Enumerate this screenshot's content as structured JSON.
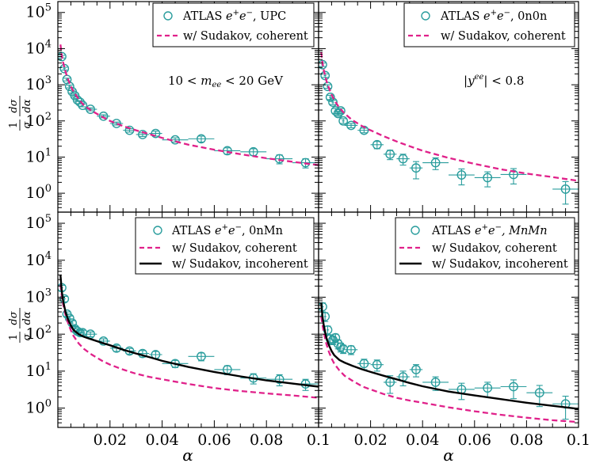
{
  "colors": {
    "data": "#2a9d9d",
    "coherent": "#e0218a",
    "incoherent": "#000000",
    "frame": "#000000"
  },
  "figure": {
    "xlabel": "α",
    "ylabel": "1/σ dσ/dα",
    "ylabel_num": "1",
    "ylabel_den": "σ",
    "ylabel_dnum": "dσ",
    "ylabel_dden": "dα"
  },
  "chart_data": [
    {
      "type": "scatter",
      "panel": "top-left",
      "xlim": [
        0,
        0.1
      ],
      "ylim": [
        0.3,
        200000
      ],
      "yscale": "log",
      "ylabel": "1/σ dσ/dα",
      "xlabel": "",
      "annotation": "10 < mee < 20 GeV",
      "legend": {
        "placement": "top-right",
        "entries": [
          "ATLAS e+e−, UPC",
          "w/ Sudakov, coherent"
        ]
      },
      "series": [
        {
          "name": "ATLAS e+e−, UPC",
          "kind": "data",
          "x": [
            0.0015,
            0.0025,
            0.0035,
            0.0045,
            0.0055,
            0.0065,
            0.0075,
            0.0085,
            0.0095,
            0.0125,
            0.0175,
            0.0225,
            0.0275,
            0.0325,
            0.0375,
            0.045,
            0.055,
            0.065,
            0.075,
            0.085,
            0.095
          ],
          "y": [
            6000,
            2800,
            1400,
            900,
            650,
            500,
            380,
            330,
            270,
            210,
            135,
            85,
            55,
            42,
            45,
            30,
            32,
            15,
            14,
            9,
            7
          ],
          "xerr": [
            0.0005,
            0.0005,
            0.0005,
            0.0005,
            0.0005,
            0.0005,
            0.0005,
            0.0005,
            0.0005,
            0.0025,
            0.0025,
            0.0025,
            0.0025,
            0.0025,
            0.0025,
            0.005,
            0.005,
            0.005,
            0.005,
            0.005,
            0.005
          ],
          "yerr": [
            500,
            250,
            120,
            80,
            60,
            45,
            35,
            30,
            25,
            20,
            13,
            8,
            6,
            5,
            7,
            4,
            6,
            3,
            3,
            2.5,
            2
          ]
        },
        {
          "name": "w/ Sudakov, coherent",
          "kind": "coherent",
          "x": [
            0.001,
            0.0015,
            0.002,
            0.003,
            0.004,
            0.005,
            0.006,
            0.008,
            0.01,
            0.013,
            0.017,
            0.02,
            0.025,
            0.03,
            0.035,
            0.04,
            0.05,
            0.06,
            0.07,
            0.08,
            0.09,
            0.1
          ],
          "y": [
            13000,
            6500,
            4200,
            2200,
            1350,
            900,
            650,
            400,
            270,
            190,
            130,
            100,
            72,
            55,
            43,
            34,
            22,
            16,
            12,
            9.3,
            7.4,
            6
          ]
        }
      ]
    },
    {
      "type": "scatter",
      "panel": "top-right",
      "xlim": [
        0,
        0.1
      ],
      "ylim": [
        0.3,
        200000
      ],
      "yscale": "log",
      "ylabel": "",
      "xlabel": "",
      "annotation": "|yee| < 0.8",
      "legend": {
        "placement": "top-right",
        "entries": [
          "ATLAS e+e−, 0n0n",
          "w/ Sudakov, coherent"
        ]
      },
      "series": [
        {
          "name": "ATLAS e+e−, 0n0n",
          "kind": "data",
          "x": [
            0.0015,
            0.0025,
            0.0035,
            0.0045,
            0.0055,
            0.0065,
            0.0075,
            0.0085,
            0.0095,
            0.0125,
            0.0175,
            0.0225,
            0.0275,
            0.0325,
            0.0375,
            0.045,
            0.055,
            0.065,
            0.075,
            0.095
          ],
          "y": [
            3600,
            1800,
            900,
            450,
            330,
            190,
            160,
            190,
            100,
            75,
            55,
            22,
            12,
            9,
            5,
            7,
            3.2,
            2.7,
            3.3,
            1.3
          ],
          "xerr": [
            0.0005,
            0.0005,
            0.0005,
            0.0005,
            0.0005,
            0.0005,
            0.0005,
            0.0005,
            0.0005,
            0.0025,
            0.0025,
            0.0025,
            0.0025,
            0.0025,
            0.0025,
            0.005,
            0.005,
            0.005,
            0.005,
            0.005
          ],
          "yerr": [
            400,
            200,
            100,
            60,
            45,
            30,
            25,
            30,
            15,
            10,
            8,
            5,
            3.5,
            3,
            2.5,
            2.5,
            1.5,
            1.2,
            1.5,
            0.8
          ]
        },
        {
          "name": "w/ Sudakov, coherent",
          "kind": "coherent",
          "x": [
            0.001,
            0.0015,
            0.002,
            0.003,
            0.004,
            0.005,
            0.006,
            0.008,
            0.01,
            0.013,
            0.017,
            0.02,
            0.025,
            0.03,
            0.035,
            0.04,
            0.05,
            0.06,
            0.07,
            0.08,
            0.09,
            0.1
          ],
          "y": [
            8000,
            4000,
            2500,
            1300,
            800,
            530,
            380,
            230,
            160,
            105,
            70,
            55,
            38,
            27,
            20,
            15,
            9.5,
            6.5,
            4.6,
            3.5,
            2.8,
            2.2
          ]
        }
      ]
    },
    {
      "type": "scatter",
      "panel": "bottom-left",
      "xlim": [
        0,
        0.1
      ],
      "ylim": [
        0.3,
        200000
      ],
      "yscale": "log",
      "ylabel": "1/σ dσ/dα",
      "xlabel": "α",
      "annotation": "",
      "legend": {
        "placement": "top-right",
        "entries": [
          "ATLAS e+e−, 0nMn",
          "w/ Sudakov, coherent",
          "w/ Sudakov, incoherent"
        ]
      },
      "series": [
        {
          "name": "ATLAS e+e−, 0nMn",
          "kind": "data",
          "x": [
            0.0015,
            0.0025,
            0.0035,
            0.0045,
            0.0055,
            0.0065,
            0.0075,
            0.0085,
            0.0095,
            0.0125,
            0.0175,
            0.0225,
            0.0275,
            0.0325,
            0.0375,
            0.045,
            0.055,
            0.065,
            0.075,
            0.085,
            0.095
          ],
          "y": [
            1800,
            900,
            350,
            270,
            200,
            140,
            120,
            110,
            110,
            100,
            65,
            42,
            35,
            30,
            28,
            16,
            25,
            11,
            6.5,
            6,
            4.5
          ],
          "xerr": [
            0.0005,
            0.0005,
            0.0005,
            0.0005,
            0.0005,
            0.0005,
            0.0005,
            0.0005,
            0.0005,
            0.0025,
            0.0025,
            0.0025,
            0.0025,
            0.0025,
            0.0025,
            0.005,
            0.005,
            0.005,
            0.005,
            0.005,
            0.005
          ],
          "yerr": [
            300,
            150,
            50,
            40,
            30,
            22,
            20,
            18,
            18,
            15,
            10,
            8,
            6,
            6,
            6,
            3.5,
            6,
            3,
            2,
            2,
            1.5
          ]
        },
        {
          "name": "w/ Sudakov, coherent",
          "kind": "coherent",
          "x": [
            0.001,
            0.0015,
            0.002,
            0.003,
            0.004,
            0.005,
            0.006,
            0.008,
            0.01,
            0.013,
            0.017,
            0.02,
            0.025,
            0.03,
            0.035,
            0.04,
            0.05,
            0.06,
            0.07,
            0.08,
            0.09,
            0.1
          ],
          "y": [
            2200,
            1100,
            650,
            320,
            190,
            125,
            90,
            56,
            40,
            28,
            19,
            15,
            11,
            8.5,
            7,
            6,
            4.5,
            3.5,
            2.9,
            2.5,
            2.2,
            1.9
          ]
        },
        {
          "name": "w/ Sudakov, incoherent",
          "kind": "incoherent",
          "x": [
            0.001,
            0.0015,
            0.002,
            0.003,
            0.004,
            0.005,
            0.006,
            0.008,
            0.01,
            0.013,
            0.017,
            0.02,
            0.025,
            0.03,
            0.035,
            0.04,
            0.05,
            0.06,
            0.07,
            0.08,
            0.09,
            0.1
          ],
          "y": [
            4000,
            1500,
            800,
            380,
            240,
            170,
            130,
            100,
            85,
            72,
            58,
            50,
            38,
            30,
            24,
            19,
            13,
            9.5,
            7.2,
            5.6,
            4.6,
            3.8
          ]
        }
      ]
    },
    {
      "type": "scatter",
      "panel": "bottom-right",
      "xlim": [
        0,
        0.1
      ],
      "ylim": [
        0.3,
        200000
      ],
      "yscale": "log",
      "ylabel": "",
      "xlabel": "α",
      "annotation": "",
      "legend": {
        "placement": "top-right",
        "entries": [
          "ATLAS e+e−, MnMn",
          "w/ Sudakov, coherent",
          "w/ Sudakov, incoherent"
        ]
      },
      "series": [
        {
          "name": "ATLAS e+e−, MnMn",
          "kind": "data",
          "x": [
            0.0015,
            0.0025,
            0.0035,
            0.0045,
            0.0055,
            0.0065,
            0.0075,
            0.0085,
            0.0095,
            0.0125,
            0.0175,
            0.0225,
            0.0275,
            0.0325,
            0.0375,
            0.045,
            0.055,
            0.065,
            0.075,
            0.085,
            0.095
          ],
          "y": [
            550,
            300,
            130,
            75,
            70,
            80,
            55,
            45,
            40,
            38,
            16,
            15,
            5,
            7,
            11,
            5,
            3.2,
            3.5,
            3.8,
            2.6,
            1.3
          ],
          "xerr": [
            0.0005,
            0.0005,
            0.0005,
            0.0005,
            0.0005,
            0.0005,
            0.0005,
            0.0005,
            0.0005,
            0.0025,
            0.0025,
            0.0025,
            0.0025,
            0.0025,
            0.0025,
            0.005,
            0.005,
            0.005,
            0.005,
            0.005,
            0.005
          ],
          "yerr": [
            150,
            80,
            35,
            20,
            18,
            20,
            15,
            12,
            10,
            10,
            5,
            5,
            2.5,
            3,
            4,
            2,
            1.5,
            1.5,
            2,
            1.5,
            0.8
          ]
        },
        {
          "name": "w/ Sudakov, coherent",
          "kind": "coherent",
          "x": [
            0.001,
            0.0015,
            0.002,
            0.003,
            0.004,
            0.005,
            0.006,
            0.008,
            0.01,
            0.013,
            0.017,
            0.02,
            0.025,
            0.03,
            0.035,
            0.04,
            0.05,
            0.06,
            0.07,
            0.08,
            0.09,
            0.1
          ],
          "y": [
            300,
            180,
            110,
            55,
            33,
            22,
            16,
            10.5,
            7.5,
            5.5,
            3.8,
            3.2,
            2.4,
            1.9,
            1.6,
            1.4,
            1.05,
            0.82,
            0.66,
            0.55,
            0.47,
            0.42
          ]
        },
        {
          "name": "w/ Sudakov, incoherent",
          "kind": "incoherent",
          "x": [
            0.001,
            0.0015,
            0.002,
            0.003,
            0.004,
            0.005,
            0.006,
            0.008,
            0.01,
            0.013,
            0.017,
            0.02,
            0.025,
            0.03,
            0.035,
            0.04,
            0.05,
            0.06,
            0.07,
            0.08,
            0.09,
            0.1
          ],
          "y": [
            700,
            300,
            170,
            80,
            50,
            35,
            27,
            20,
            17,
            14,
            11,
            9.5,
            7.5,
            6,
            4.8,
            3.9,
            2.8,
            2.2,
            1.75,
            1.4,
            1.15,
            0.95
          ]
        }
      ]
    }
  ],
  "legend_text": {
    "tl": {
      "line1_prefix": "ATLAS ",
      "line1_suffix": ", UPC",
      "line2": "w/ Sudakov, coherent"
    },
    "tr": {
      "line1_prefix": "ATLAS ",
      "line1_suffix": ", 0n0n",
      "line2": "w/ Sudakov, coherent"
    },
    "bl": {
      "line1_prefix": "ATLAS ",
      "line1_suffix": ", 0nMn",
      "line2": "w/ Sudakov, coherent",
      "line3": "w/ Sudakov, incoherent"
    },
    "br": {
      "line1_prefix": "ATLAS ",
      "line1_suffix": ", MnMn",
      "line2": "w/ Sudakov, coherent",
      "line3": "w/ Sudakov, incoherent"
    }
  },
  "annotations": {
    "tl": {
      "lhs": "10 < ",
      "var": "m",
      "sub": "ee",
      "rhs": " < 20 GeV"
    },
    "tr": {
      "pre": "|",
      "var": "y",
      "sup": "ee",
      "rhs": "| < 0.8"
    }
  },
  "axes": {
    "x_ticks_left": [
      "0.02",
      "0.04",
      "0.06",
      "0.08",
      "0.1"
    ],
    "x_ticks_right": [
      "0.02",
      "0.04",
      "0.06",
      "0.08",
      "0.1"
    ],
    "y_tick_base": "10",
    "y_tick_exps": [
      "0",
      "1",
      "2",
      "3",
      "4",
      "5"
    ]
  }
}
